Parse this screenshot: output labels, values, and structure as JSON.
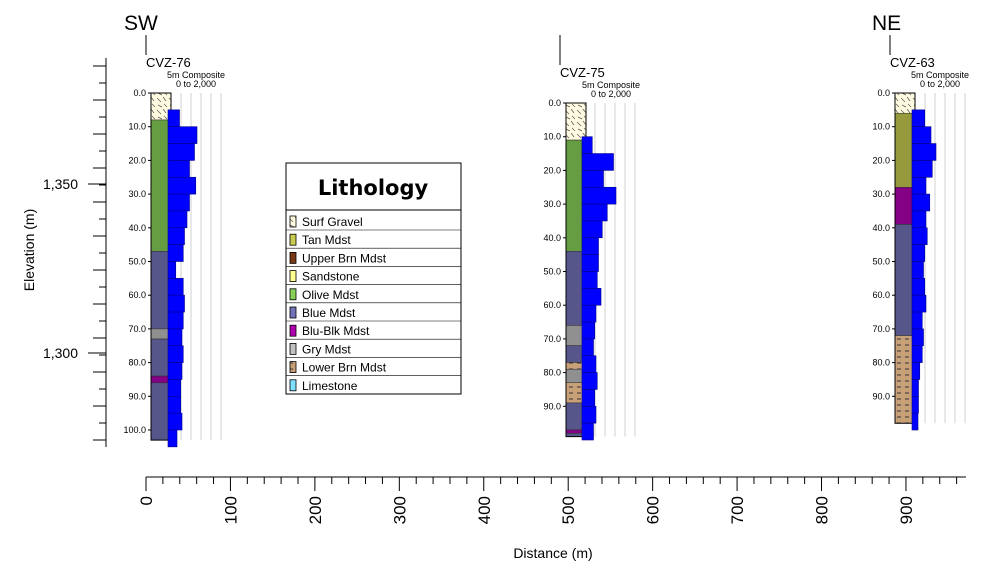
{
  "labels": {
    "sw": "SW",
    "ne": "NE"
  },
  "axes": {
    "y_title": "Elevation (m)",
    "y_ticks": [
      "1,350",
      "1,300"
    ],
    "x_title": "Distance (m)",
    "x_ticks": [
      "0",
      "100",
      "200",
      "300",
      "400",
      "500",
      "600",
      "700",
      "800",
      "900"
    ]
  },
  "legend": {
    "title": "Lithology",
    "items": [
      {
        "label": "Surf Gravel",
        "color": "#fffbe0"
      },
      {
        "label": "Tan Mdst",
        "color": "#c8cc50"
      },
      {
        "label": "Upper Brn Mdst",
        "color": "#7a3a18"
      },
      {
        "label": "Sandstone",
        "color": "#ffff90"
      },
      {
        "label": "Olive Mdst",
        "color": "#88d058"
      },
      {
        "label": "Blue Mdst",
        "color": "#7272b8"
      },
      {
        "label": "Blu-Blk Mdst",
        "color": "#b000b0"
      },
      {
        "label": "Gry Mdst",
        "color": "#c0c0c0"
      },
      {
        "label": "Lower Brn Mdst",
        "color": "#c8a078"
      },
      {
        "label": "Limestone",
        "color": "#80e0ff"
      }
    ]
  },
  "wells": [
    {
      "name": "CVZ-76",
      "composite": "5m Composite",
      "range": "0 to 2,000",
      "depth_ticks": [
        "0.0",
        "10.0",
        "20.0",
        "30.0",
        "40.0",
        "50.0",
        "60.0",
        "70.0",
        "80.0",
        "90.0",
        "100.0"
      ],
      "total_depth": 103,
      "lithology": [
        {
          "from": 0,
          "to": 8,
          "unit": "Surf Gravel"
        },
        {
          "from": 8,
          "to": 47,
          "unit": "Olive Mdst"
        },
        {
          "from": 47,
          "to": 70,
          "unit": "Blue Mdst"
        },
        {
          "from": 70,
          "to": 73,
          "unit": "Gry Mdst"
        },
        {
          "from": 73,
          "to": 84,
          "unit": "Blue Mdst"
        },
        {
          "from": 84,
          "to": 86,
          "unit": "Blu-Blk Mdst"
        },
        {
          "from": 86,
          "to": 103,
          "unit": "Blue Mdst"
        }
      ],
      "assays": [
        {
          "from": 5,
          "to": 10,
          "value": 300
        },
        {
          "from": 10,
          "to": 15,
          "value": 1000
        },
        {
          "from": 15,
          "to": 20,
          "value": 900
        },
        {
          "from": 20,
          "to": 25,
          "value": 700
        },
        {
          "from": 25,
          "to": 30,
          "value": 950
        },
        {
          "from": 30,
          "to": 35,
          "value": 700
        },
        {
          "from": 35,
          "to": 40,
          "value": 600
        },
        {
          "from": 40,
          "to": 45,
          "value": 500
        },
        {
          "from": 45,
          "to": 50,
          "value": 450
        },
        {
          "from": 50,
          "to": 55,
          "value": 150
        },
        {
          "from": 55,
          "to": 60,
          "value": 450
        },
        {
          "from": 60,
          "to": 65,
          "value": 500
        },
        {
          "from": 65,
          "to": 70,
          "value": 450
        },
        {
          "from": 70,
          "to": 75,
          "value": 400
        },
        {
          "from": 75,
          "to": 80,
          "value": 450
        },
        {
          "from": 80,
          "to": 85,
          "value": 400
        },
        {
          "from": 85,
          "to": 90,
          "value": 350
        },
        {
          "from": 90,
          "to": 95,
          "value": 350
        },
        {
          "from": 95,
          "to": 100,
          "value": 400
        },
        {
          "from": 100,
          "to": 105,
          "value": 200
        }
      ]
    },
    {
      "name": "CVZ-75",
      "composite": "5m Composite",
      "range": "0 to 2,000",
      "depth_ticks": [
        "0.0",
        "10.0",
        "20.0",
        "30.0",
        "40.0",
        "50.0",
        "60.0",
        "70.0",
        "80.0",
        "90.0"
      ],
      "total_depth": 99,
      "lithology": [
        {
          "from": 0,
          "to": 11,
          "unit": "Surf Gravel"
        },
        {
          "from": 11,
          "to": 44,
          "unit": "Olive Mdst"
        },
        {
          "from": 44,
          "to": 66,
          "unit": "Blue Mdst"
        },
        {
          "from": 66,
          "to": 72,
          "unit": "Gry Mdst"
        },
        {
          "from": 72,
          "to": 77,
          "unit": "Blue Mdst"
        },
        {
          "from": 77,
          "to": 79,
          "unit": "Lower Brn Mdst"
        },
        {
          "from": 79,
          "to": 83,
          "unit": "Gry Mdst"
        },
        {
          "from": 83,
          "to": 89,
          "unit": "Lower Brn Mdst"
        },
        {
          "from": 89,
          "to": 97,
          "unit": "Blue Mdst"
        },
        {
          "from": 97,
          "to": 98,
          "unit": "Blu-Blk Mdst"
        },
        {
          "from": 98,
          "to": 99,
          "unit": "Blue Mdst"
        }
      ],
      "assays": [
        {
          "from": 10,
          "to": 15,
          "value": 250
        },
        {
          "from": 15,
          "to": 20,
          "value": 1100
        },
        {
          "from": 20,
          "to": 25,
          "value": 700
        },
        {
          "from": 25,
          "to": 30,
          "value": 1200
        },
        {
          "from": 30,
          "to": 35,
          "value": 850
        },
        {
          "from": 35,
          "to": 40,
          "value": 650
        },
        {
          "from": 40,
          "to": 45,
          "value": 500
        },
        {
          "from": 45,
          "to": 50,
          "value": 500
        },
        {
          "from": 50,
          "to": 55,
          "value": 450
        },
        {
          "from": 55,
          "to": 60,
          "value": 600
        },
        {
          "from": 60,
          "to": 65,
          "value": 400
        },
        {
          "from": 65,
          "to": 70,
          "value": 350
        },
        {
          "from": 70,
          "to": 75,
          "value": 300
        },
        {
          "from": 75,
          "to": 80,
          "value": 400
        },
        {
          "from": 80,
          "to": 85,
          "value": 450
        },
        {
          "from": 85,
          "to": 90,
          "value": 350
        },
        {
          "from": 90,
          "to": 95,
          "value": 400
        },
        {
          "from": 95,
          "to": 100,
          "value": 300
        }
      ]
    },
    {
      "name": "CVZ-63",
      "composite": "5m Composite",
      "range": "0 to 2,000",
      "depth_ticks": [
        "0.0",
        "10.0",
        "20.0",
        "30.0",
        "40.0",
        "50.0",
        "60.0",
        "70.0",
        "80.0",
        "90.0"
      ],
      "total_depth": 98,
      "lithology": [
        {
          "from": 0,
          "to": 6,
          "unit": "Surf Gravel"
        },
        {
          "from": 6,
          "to": 28,
          "unit": "Tan Mdst"
        },
        {
          "from": 28,
          "to": 39,
          "unit": "Blu-Blk Mdst"
        },
        {
          "from": 39,
          "to": 72,
          "unit": "Blue Mdst"
        },
        {
          "from": 72,
          "to": 98,
          "unit": "Lower Brn Mdst"
        }
      ],
      "assays": [
        {
          "from": 5,
          "to": 10,
          "value": 350
        },
        {
          "from": 10,
          "to": 15,
          "value": 600
        },
        {
          "from": 15,
          "to": 20,
          "value": 800
        },
        {
          "from": 20,
          "to": 25,
          "value": 650
        },
        {
          "from": 25,
          "to": 30,
          "value": 400
        },
        {
          "from": 30,
          "to": 35,
          "value": 550
        },
        {
          "from": 35,
          "to": 40,
          "value": 400
        },
        {
          "from": 40,
          "to": 45,
          "value": 450
        },
        {
          "from": 45,
          "to": 50,
          "value": 350
        },
        {
          "from": 50,
          "to": 55,
          "value": 300
        },
        {
          "from": 55,
          "to": 60,
          "value": 350
        },
        {
          "from": 60,
          "to": 65,
          "value": 400
        },
        {
          "from": 65,
          "to": 70,
          "value": 250
        },
        {
          "from": 70,
          "to": 75,
          "value": 300
        },
        {
          "from": 75,
          "to": 80,
          "value": 250
        },
        {
          "from": 80,
          "to": 85,
          "value": 150
        },
        {
          "from": 85,
          "to": 90,
          "value": 100
        },
        {
          "from": 90,
          "to": 95,
          "value": 100
        },
        {
          "from": 95,
          "to": 100,
          "value": 50
        }
      ]
    }
  ]
}
